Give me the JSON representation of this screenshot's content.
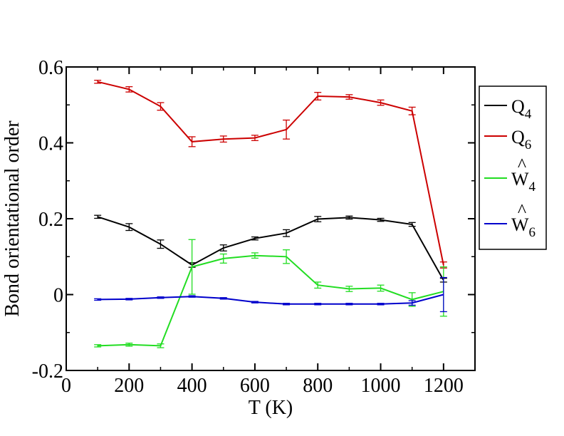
{
  "chart_data": {
    "type": "line",
    "xlabel": "T (K)",
    "ylabel": "Bond orientational order",
    "xlim": [
      0,
      1300
    ],
    "ylim": [
      -0.2,
      0.6
    ],
    "xticks": [
      0,
      200,
      400,
      600,
      800,
      1000,
      1200
    ],
    "yticks": [
      -0.2,
      0,
      0.2,
      0.4,
      0.6
    ],
    "xtick_labels": [
      "0",
      "200",
      "400",
      "600",
      "800",
      "1000",
      "1200"
    ],
    "ytick_labels": [
      "-0.2",
      "0",
      "0.2",
      "0.4",
      "0.6"
    ],
    "grid": false,
    "legend_position": "right",
    "x": [
      100,
      200,
      300,
      400,
      500,
      600,
      700,
      800,
      900,
      1000,
      1100,
      1200
    ],
    "series": [
      {
        "name": "Q4",
        "base": "Q",
        "sub": "4",
        "hat": false,
        "color": "#000000",
        "values": [
          0.205,
          0.178,
          0.133,
          0.078,
          0.123,
          0.148,
          0.162,
          0.199,
          0.203,
          0.197,
          0.185,
          0.038
        ],
        "errors": [
          0.004,
          0.009,
          0.011,
          0.006,
          0.008,
          0.004,
          0.009,
          0.007,
          0.004,
          0.004,
          0.005,
          0.005
        ]
      },
      {
        "name": "Q6",
        "base": "Q",
        "sub": "6",
        "hat": false,
        "color": "#cc0000",
        "values": [
          0.561,
          0.541,
          0.496,
          0.403,
          0.41,
          0.413,
          0.435,
          0.523,
          0.521,
          0.506,
          0.484,
          0.078
        ],
        "errors": [
          0.004,
          0.007,
          0.01,
          0.013,
          0.008,
          0.007,
          0.025,
          0.01,
          0.006,
          0.007,
          0.01,
          0.008
        ]
      },
      {
        "name": "W4",
        "base": "W",
        "sub": "4",
        "hat": true,
        "color": "#22dd22",
        "values": [
          -0.135,
          -0.132,
          -0.135,
          0.073,
          0.095,
          0.103,
          0.1,
          0.025,
          0.015,
          0.017,
          -0.013,
          0.008
        ],
        "errors": [
          0.003,
          0.004,
          0.005,
          0.072,
          0.012,
          0.007,
          0.018,
          0.008,
          0.007,
          0.008,
          0.018,
          0.065
        ]
      },
      {
        "name": "W6",
        "base": "W",
        "sub": "6",
        "hat": true,
        "color": "#0000cc",
        "values": [
          -0.013,
          -0.012,
          -0.008,
          -0.005,
          -0.01,
          -0.02,
          -0.025,
          -0.025,
          -0.025,
          -0.025,
          -0.022,
          0.0
        ],
        "errors": [
          0.002,
          0.002,
          0.002,
          0.002,
          0.002,
          0.002,
          0.002,
          0.002,
          0.002,
          0.002,
          0.006,
          0.045
        ]
      }
    ]
  }
}
